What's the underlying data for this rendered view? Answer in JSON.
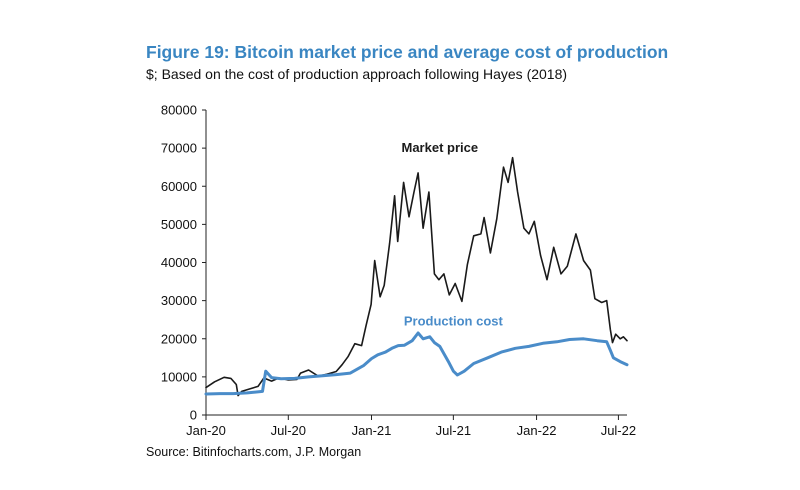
{
  "figure": {
    "title": "Figure 19: Bitcoin market price and average cost of production",
    "subtitle": "$; Based on the cost of production approach following Hayes (2018)",
    "source": "Source: Bitinfocharts.com, J.P. Morgan"
  },
  "chart_data": {
    "type": "line",
    "title": "Figure 19: Bitcoin market price and average cost of production",
    "subtitle": "$; Based on the cost of production approach following Hayes (2018)",
    "xlabel": "",
    "ylabel": "",
    "xlim": [
      "2020-01-01",
      "2022-07-20"
    ],
    "ylim": [
      0,
      80000
    ],
    "yticks": [
      0,
      10000,
      20000,
      30000,
      40000,
      50000,
      60000,
      70000,
      80000
    ],
    "ytick_labels": [
      "0",
      "10000",
      "20000",
      "30000",
      "40000",
      "50000",
      "60000",
      "70000",
      "80000"
    ],
    "xticks": [
      "2020-01-01",
      "2020-07-01",
      "2021-01-01",
      "2021-07-01",
      "2022-01-01",
      "2022-07-01"
    ],
    "xtick_labels": [
      "Jan-20",
      "Jul-20",
      "Jan-21",
      "Jul-21",
      "Jan-22",
      "Jul-22"
    ],
    "grid": false,
    "legend": "none",
    "series": [
      {
        "name": "Market price",
        "color": "#1a1a1a",
        "points": [
          [
            "2020-01-01",
            7200
          ],
          [
            "2020-01-20",
            8700
          ],
          [
            "2020-02-10",
            9900
          ],
          [
            "2020-02-25",
            9600
          ],
          [
            "2020-03-08",
            8000
          ],
          [
            "2020-03-12",
            5100
          ],
          [
            "2020-03-20",
            6200
          ],
          [
            "2020-04-05",
            6800
          ],
          [
            "2020-04-25",
            7500
          ],
          [
            "2020-05-08",
            9700
          ],
          [
            "2020-05-25",
            8900
          ],
          [
            "2020-06-10",
            9700
          ],
          [
            "2020-06-30",
            9200
          ],
          [
            "2020-07-20",
            9300
          ],
          [
            "2020-07-28",
            11000
          ],
          [
            "2020-08-15",
            11800
          ],
          [
            "2020-09-05",
            10200
          ],
          [
            "2020-09-25",
            10700
          ],
          [
            "2020-10-15",
            11400
          ],
          [
            "2020-10-28",
            13200
          ],
          [
            "2020-11-10",
            15300
          ],
          [
            "2020-11-25",
            18700
          ],
          [
            "2020-12-10",
            18200
          ],
          [
            "2020-12-20",
            23500
          ],
          [
            "2020-12-31",
            29000
          ],
          [
            "2021-01-08",
            40500
          ],
          [
            "2021-01-20",
            31000
          ],
          [
            "2021-01-29",
            34000
          ],
          [
            "2021-02-10",
            45000
          ],
          [
            "2021-02-21",
            57500
          ],
          [
            "2021-02-28",
            45500
          ],
          [
            "2021-03-13",
            61000
          ],
          [
            "2021-03-25",
            52000
          ],
          [
            "2021-04-05",
            58500
          ],
          [
            "2021-04-14",
            63500
          ],
          [
            "2021-04-25",
            49000
          ],
          [
            "2021-05-08",
            58500
          ],
          [
            "2021-05-15",
            46000
          ],
          [
            "2021-05-20",
            37000
          ],
          [
            "2021-05-30",
            35500
          ],
          [
            "2021-06-10",
            37000
          ],
          [
            "2021-06-22",
            31500
          ],
          [
            "2021-07-05",
            34500
          ],
          [
            "2021-07-20",
            29800
          ],
          [
            "2021-08-01",
            39500
          ],
          [
            "2021-08-15",
            47000
          ],
          [
            "2021-08-31",
            47500
          ],
          [
            "2021-09-07",
            51800
          ],
          [
            "2021-09-21",
            42500
          ],
          [
            "2021-10-05",
            51500
          ],
          [
            "2021-10-20",
            65000
          ],
          [
            "2021-10-30",
            61000
          ],
          [
            "2021-11-09",
            67500
          ],
          [
            "2021-11-20",
            58500
          ],
          [
            "2021-12-04",
            49000
          ],
          [
            "2021-12-15",
            47500
          ],
          [
            "2021-12-27",
            50800
          ],
          [
            "2022-01-10",
            41800
          ],
          [
            "2022-01-24",
            35500
          ],
          [
            "2022-02-08",
            44000
          ],
          [
            "2022-02-24",
            37000
          ],
          [
            "2022-03-10",
            39000
          ],
          [
            "2022-03-29",
            47500
          ],
          [
            "2022-04-15",
            40500
          ],
          [
            "2022-04-30",
            38000
          ],
          [
            "2022-05-10",
            30500
          ],
          [
            "2022-05-25",
            29500
          ],
          [
            "2022-06-05",
            30000
          ],
          [
            "2022-06-13",
            22500
          ],
          [
            "2022-06-18",
            19000
          ],
          [
            "2022-06-25",
            21200
          ],
          [
            "2022-07-05",
            20000
          ],
          [
            "2022-07-12",
            20500
          ],
          [
            "2022-07-20",
            19500
          ]
        ]
      },
      {
        "name": "Production cost",
        "color": "#4a8cc9",
        "points": [
          [
            "2020-01-01",
            5500
          ],
          [
            "2020-02-01",
            5600
          ],
          [
            "2020-03-01",
            5600
          ],
          [
            "2020-04-01",
            5800
          ],
          [
            "2020-05-05",
            6200
          ],
          [
            "2020-05-12",
            11500
          ],
          [
            "2020-05-25",
            9800
          ],
          [
            "2020-06-15",
            9500
          ],
          [
            "2020-07-15",
            9600
          ],
          [
            "2020-08-15",
            10000
          ],
          [
            "2020-09-15",
            10300
          ],
          [
            "2020-10-15",
            10600
          ],
          [
            "2020-11-15",
            11000
          ],
          [
            "2020-12-15",
            13000
          ],
          [
            "2021-01-01",
            14800
          ],
          [
            "2021-01-15",
            15800
          ],
          [
            "2021-02-01",
            16500
          ],
          [
            "2021-02-15",
            17500
          ],
          [
            "2021-03-01",
            18200
          ],
          [
            "2021-03-15",
            18300
          ],
          [
            "2021-04-01",
            19500
          ],
          [
            "2021-04-14",
            21500
          ],
          [
            "2021-04-25",
            20000
          ],
          [
            "2021-05-10",
            20500
          ],
          [
            "2021-05-20",
            19000
          ],
          [
            "2021-06-01",
            18000
          ],
          [
            "2021-06-20",
            14000
          ],
          [
            "2021-07-01",
            11500
          ],
          [
            "2021-07-10",
            10500
          ],
          [
            "2021-07-25",
            11500
          ],
          [
            "2021-08-15",
            13500
          ],
          [
            "2021-09-15",
            15000
          ],
          [
            "2021-10-15",
            16500
          ],
          [
            "2021-11-15",
            17500
          ],
          [
            "2021-12-15",
            18000
          ],
          [
            "2022-01-15",
            18800
          ],
          [
            "2022-02-15",
            19200
          ],
          [
            "2022-03-15",
            19800
          ],
          [
            "2022-04-15",
            20000
          ],
          [
            "2022-05-15",
            19500
          ],
          [
            "2022-06-05",
            19200
          ],
          [
            "2022-06-13",
            17000
          ],
          [
            "2022-06-20",
            15000
          ],
          [
            "2022-07-05",
            14000
          ],
          [
            "2022-07-20",
            13200
          ]
        ]
      }
    ],
    "annotations": [
      {
        "text": "Market price",
        "series": "Market price",
        "at": [
          "2021-06-01",
          69000
        ]
      },
      {
        "text": "Production cost",
        "series": "Production cost",
        "at": [
          "2021-07-01",
          23500
        ]
      }
    ]
  }
}
